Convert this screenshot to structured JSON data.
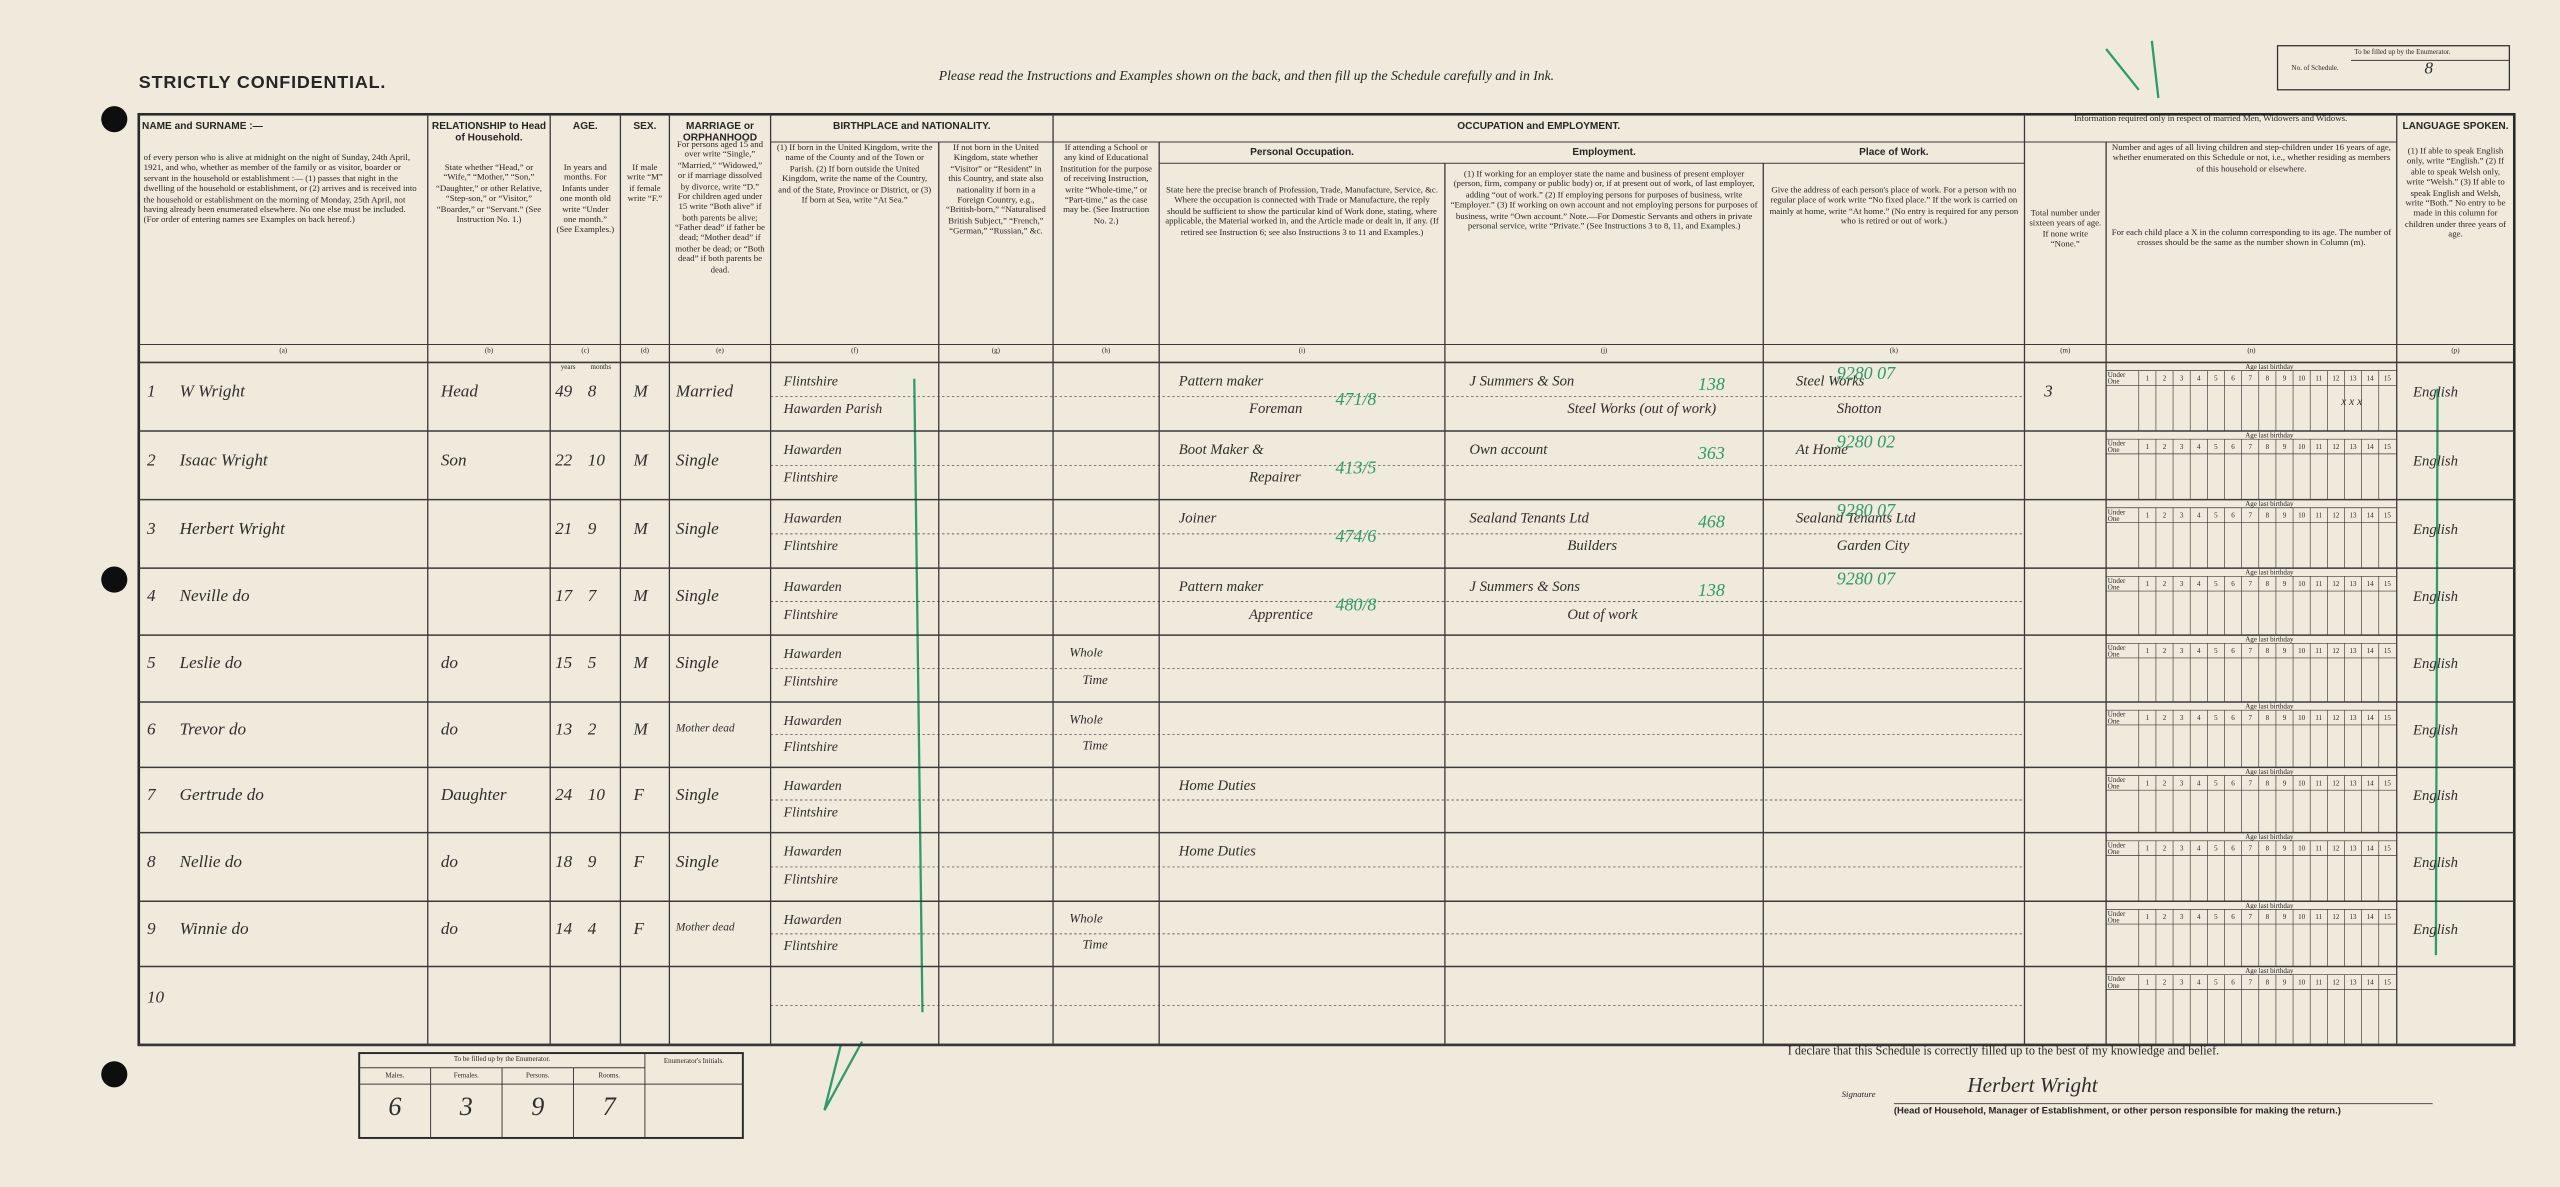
{
  "header": {
    "title": "STRICTLY CONFIDENTIAL.",
    "instruction": "Please read the Instructions and Examples shown on the back, and then fill up the Schedule carefully and in Ink.",
    "schedule_box": {
      "caption": "To be filled up by the Enumerator.",
      "label": "No. of Schedule.",
      "value": "8"
    }
  },
  "groups": {
    "birthplace_nationality": "BIRTHPLACE and NATIONALITY.",
    "occupation_employment": "OCCUPATION and EMPLOYMENT.",
    "married_info": "Information required only in respect of married Men, Widowers and Widows."
  },
  "columns": [
    {
      "letter": "(a)",
      "heading": "NAME and SURNAME :—",
      "text": "of every person who is alive at midnight on the night of Sunday, 24th April, 1921, and who, whether as member of the family or as visitor, boarder or servant in the household or establishment :— (1) passes that night in the dwelling of the household or establishment, or (2) arrives and is received into the household or establishment on the morning of Monday, 25th April, not having already been enumerated elsewhere. No one else must be included. (For order of entering names see Examples on back hereof.)"
    },
    {
      "letter": "(b)",
      "heading": "RELATIONSHIP to Head of Household.",
      "text": "State whether “Head,” or “Wife,” “Mother,” “Son,” “Daughter,” or other Relative, “Step-son,” or “Visitor,” “Boarder,” or “Servant.” (See Instruction No. 1.)"
    },
    {
      "letter": "(c)",
      "heading": "AGE.",
      "text": "In years and months. For Infants under one month old write “Under one month.” (See Examples.)",
      "subheads": [
        "years",
        "months"
      ]
    },
    {
      "letter": "(d)",
      "heading": "SEX.",
      "text": "If male write “M” if female write “F.”"
    },
    {
      "letter": "(e)",
      "heading": "MARRIAGE or ORPHANHOOD",
      "text": "For persons aged 15 and over write “Single,” “Married,” “Widowed,” or if marriage dissolved by divorce, write “D.” For children aged under 15 write “Both alive” if both parents be alive; “Father dead” if father be dead; “Mother dead” if mother be dead; or “Both dead” if both parents be dead."
    },
    {
      "letter": "(f)",
      "text": "(1) If born in the United Kingdom, write the name of the County and of the Town or Parish. (2) If born outside the United Kingdom, write the name of the Country, and of the State, Province or District, or (3) If born at Sea, write “At Sea.”"
    },
    {
      "letter": "(g)",
      "text": "If not born in the United Kingdom, state whether “Visitor” or “Resident” in this Country, and state also nationality if born in a Foreign Country, e.g., “British-born,” “Naturalised British Subject,” “French,” “German,” “Russian,” &c."
    },
    {
      "letter": "(h)",
      "text": "If attending a School or any kind of Educational Institution for the purpose of receiving Instruction, write “Whole-time,” or “Part-time,” as the case may be. (See Instruction No. 2.)"
    },
    {
      "letter": "(i)",
      "heading": "Personal Occupation.",
      "text": "State here the precise branch of Profession, Trade, Manufacture, Service, &c. Where the occupation is connected with Trade or Manufacture, the reply should be sufficient to show the particular kind of Work done, stating, where applicable, the Material worked in, and the Article made or dealt in, if any. (If retired see Instruction 6; see also Instructions 3 to 11 and Examples.)"
    },
    {
      "letter": "(j)",
      "heading": "Employment.",
      "text": "(1) If working for an employer state the name and business of present employer (person, firm, company or public body) or, if at present out of work, of last employer, adding “out of work.” (2) If employing persons for purposes of business, write “Employer.” (3) If working on own account and not employing persons for purposes of business, write “Own account.” Note.—For Domestic Servants and others in private personal service, write “Private.” (See Instructions 3 to 8, 11, and Examples.)"
    },
    {
      "letter": "(k)",
      "heading": "Place of Work.",
      "text": "Give the address of each person's place of work. For a person with no regular place of work write “No fixed place.” If the work is carried on mainly at home, write “At home.” (No entry is required for any person who is retired or out of work.)"
    },
    {
      "letter": "(m)",
      "text": "Total number under sixteen years of age. If none write “None.”"
    },
    {
      "letter": "(n)",
      "heading": "Number and ages of all living children and step-children under 16 years of age, whether enumerated on this Schedule or not, i.e., whether residing as members of this household or elsewhere.",
      "text": "For each child place a X in the column corresponding to its age. The number of crosses should be the same as the number shown in Column (m)."
    },
    {
      "letter": "(p)",
      "heading": "LANGUAGE SPOKEN.",
      "text": "(1) If able to speak English only, write “English.” (2) If able to speak Welsh only, write “Welsh.” (3) If able to speak English and Welsh, write “Both.” No entry to be made in this column for children under three years of age."
    }
  ],
  "age_grid": {
    "caption": "Age last birthday",
    "under": "Under One",
    "ages": [
      "1",
      "2",
      "3",
      "4",
      "5",
      "6",
      "7",
      "8",
      "9",
      "10",
      "11",
      "12",
      "13",
      "14",
      "15"
    ]
  },
  "rows": [
    {
      "number": "1",
      "name": "W Wright",
      "relationship": "Head",
      "years": "49",
      "months": "8",
      "sex": "M",
      "marriage": "Married",
      "birthplace": [
        "Flintshire",
        "Hawarden Parish"
      ],
      "occupation": [
        "Pattern maker",
        "Foreman"
      ],
      "occupation_code": "471/8",
      "employment": [
        "J Summers & Son",
        "Steel Works (out of work)"
      ],
      "employment_code": "138",
      "workplace": [
        "Steel Works",
        "Shotton"
      ],
      "workplace_code": "9280 07",
      "under_sixteen": "3",
      "crosses": "x x x",
      "language": "English"
    },
    {
      "number": "2",
      "name": "Isaac Wright",
      "relationship": "Son",
      "years": "22",
      "months": "10",
      "sex": "M",
      "marriage": "Single",
      "birthplace": [
        "Hawarden",
        "Flintshire"
      ],
      "occupation": [
        "Boot Maker &",
        "Repairer"
      ],
      "occupation_code": "413/5",
      "employment": [
        "Own account"
      ],
      "employment_code": "363",
      "workplace": [
        "At Home"
      ],
      "workplace_code": "9280 02",
      "language": "English"
    },
    {
      "number": "3",
      "name": "Herbert Wright",
      "years": "21",
      "months": "9",
      "sex": "M",
      "marriage": "Single",
      "birthplace": [
        "Hawarden",
        "Flintshire"
      ],
      "occupation": [
        "Joiner"
      ],
      "occupation_code": "474/6",
      "employment": [
        "Sealand Tenants Ltd",
        "Builders"
      ],
      "employment_code": "468",
      "workplace": [
        "Sealand Tenants Ltd",
        "Garden City"
      ],
      "workplace_code": "9280 07",
      "language": "English"
    },
    {
      "number": "4",
      "name": "Neville do",
      "years": "17",
      "months": "7",
      "sex": "M",
      "marriage": "Single",
      "birthplace": [
        "Hawarden",
        "Flintshire"
      ],
      "occupation": [
        "Pattern maker",
        "Apprentice"
      ],
      "occupation_code": "480/8",
      "employment": [
        "J Summers & Sons",
        "Out of work"
      ],
      "employment_code": "138",
      "workplace_code": "9280 07",
      "language": "English"
    },
    {
      "number": "5",
      "name": "Leslie do",
      "relationship": "do",
      "years": "15",
      "months": "5",
      "sex": "M",
      "marriage": "Single",
      "birthplace": [
        "Hawarden",
        "Flintshire"
      ],
      "school": [
        "Whole",
        "Time"
      ],
      "language": "English"
    },
    {
      "number": "6",
      "name": "Trevor do",
      "relationship": "do",
      "years": "13",
      "months": "2",
      "sex": "M",
      "marriage": "Mother dead",
      "birthplace": [
        "Hawarden",
        "Flintshire"
      ],
      "school": [
        "Whole",
        "Time"
      ],
      "language": "English"
    },
    {
      "number": "7",
      "name": "Gertrude do",
      "relationship": "Daughter",
      "years": "24",
      "months": "10",
      "sex": "F",
      "marriage": "Single",
      "birthplace": [
        "Hawarden",
        "Flintshire"
      ],
      "occupation": [
        "Home Duties"
      ],
      "language": "English"
    },
    {
      "number": "8",
      "name": "Nellie do",
      "relationship": "do",
      "years": "18",
      "months": "9",
      "sex": "F",
      "marriage": "Single",
      "birthplace": [
        "Hawarden",
        "Flintshire"
      ],
      "occupation": [
        "Home Duties"
      ],
      "language": "English"
    },
    {
      "number": "9",
      "name": "Winnie do",
      "relationship": "do",
      "years": "14",
      "months": "4",
      "sex": "F",
      "marriage": "Mother dead",
      "birthplace": [
        "Hawarden",
        "Flintshire"
      ],
      "school": [
        "Whole",
        "Time"
      ],
      "language": "English"
    },
    {
      "number": "10"
    }
  ],
  "footer": {
    "declaration": "I declare that this Schedule is correctly filled up to the best of my knowledge and belief.",
    "signature_label": "Signature",
    "signature": "Herbert Wright",
    "signature_note": "(Head of Household, Manager of Establishment, or other person responsible for making the return.)"
  },
  "enumerator_box": {
    "caption": "To be filled up by the Enumerator.",
    "labels": [
      "Males.",
      "Females.",
      "Persons.",
      "Rooms."
    ],
    "values": [
      "6",
      "3",
      "9",
      "7"
    ],
    "initials_label": "Enumerator's Initials."
  }
}
